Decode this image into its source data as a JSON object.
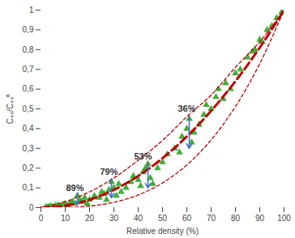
{
  "chart_data": {
    "type": "scatter",
    "x_label": "Relative density (%)",
    "y_label": "C₄₄/C₄₄⁰",
    "xlim": [
      0,
      100
    ],
    "xticks": [
      0,
      10,
      20,
      30,
      40,
      50,
      60,
      70,
      80,
      90,
      100
    ],
    "ylim": [
      0,
      1
    ],
    "yticks": [
      0,
      {
        "value": 0.1,
        "label": "0,1"
      },
      {
        "value": 0.2,
        "label": "0,2"
      },
      {
        "value": 0.3,
        "label": "0,3"
      },
      {
        "value": 0.4,
        "label": "0,4"
      },
      {
        "value": 0.5,
        "label": "0,5"
      },
      {
        "value": 0.6,
        "label": "0,6"
      },
      {
        "value": 0.7,
        "label": "0,7"
      },
      {
        "value": 0.8,
        "label": "0,8"
      },
      {
        "value": 0.9,
        "label": "0,9"
      },
      1
    ],
    "grid": false,
    "series": [
      {
        "type": "scatter",
        "marker": "triangle",
        "color": "#3fae3a",
        "x": [
          2,
          3,
          4,
          5,
          6,
          7,
          8,
          9,
          10,
          11,
          12,
          13,
          14,
          15,
          16,
          17,
          18,
          19,
          20,
          22,
          24,
          25,
          26,
          27,
          28,
          29,
          30,
          31,
          32,
          33,
          35,
          37,
          38,
          40,
          41,
          42,
          43,
          44,
          45,
          46,
          48,
          50,
          52,
          55,
          57,
          58,
          60,
          61,
          62,
          63,
          65,
          67,
          68,
          70,
          72,
          73,
          75,
          76,
          78,
          80,
          82,
          85,
          87,
          88,
          90,
          91,
          93,
          95,
          97,
          99
        ],
        "values": [
          0.003,
          0.005,
          0.008,
          0.005,
          0.01,
          0.012,
          0.006,
          0.015,
          0.02,
          0.01,
          0.025,
          0.03,
          0.02,
          0.06,
          0.04,
          0.03,
          0.05,
          0.02,
          0.04,
          0.06,
          0.05,
          0.08,
          0.07,
          0.04,
          0.09,
          0.13,
          0.1,
          0.06,
          0.12,
          0.08,
          0.1,
          0.13,
          0.16,
          0.14,
          0.11,
          0.18,
          0.2,
          0.22,
          0.15,
          0.12,
          0.2,
          0.23,
          0.27,
          0.3,
          0.28,
          0.36,
          0.4,
          0.45,
          0.33,
          0.38,
          0.42,
          0.47,
          0.52,
          0.5,
          0.56,
          0.6,
          0.55,
          0.63,
          0.6,
          0.68,
          0.7,
          0.76,
          0.79,
          0.8,
          0.85,
          0.84,
          0.9,
          0.92,
          0.96,
          0.99
        ]
      },
      {
        "type": "line",
        "line_style": "dashed",
        "color": "#c00000",
        "x": [
          0,
          10,
          20,
          30,
          40,
          50,
          60,
          70,
          80,
          90,
          100
        ],
        "values": [
          0,
          0.03,
          0.08,
          0.15,
          0.24,
          0.34,
          0.46,
          0.57,
          0.71,
          0.84,
          1
        ]
      },
      {
        "type": "line",
        "line_style": "bold-dashed",
        "color": "#c00000",
        "x": [
          0,
          10,
          20,
          30,
          40,
          50,
          60,
          70,
          80,
          90,
          100
        ],
        "values": [
          0,
          0.01,
          0.04,
          0.09,
          0.16,
          0.25,
          0.36,
          0.49,
          0.64,
          0.81,
          1
        ]
      },
      {
        "type": "line",
        "line_style": "dashed",
        "color": "#c00000",
        "x": [
          0,
          10,
          20,
          30,
          40,
          50,
          60,
          70,
          80,
          90,
          100
        ],
        "values": [
          0,
          0.001,
          0.008,
          0.027,
          0.064,
          0.125,
          0.216,
          0.343,
          0.512,
          0.729,
          1
        ]
      }
    ],
    "annotations": [
      {
        "text": "89%",
        "x": 14,
        "y": 0.1,
        "color": "#4472c4",
        "arrow": {
          "x1": 15,
          "y1": 0.075,
          "x2": 15,
          "y2": 0.015
        }
      },
      {
        "text": "79%",
        "x": 28,
        "y": 0.18,
        "color": "#4472c4",
        "arrow": {
          "x1": 29,
          "y1": 0.145,
          "x2": 29,
          "y2": 0.05
        }
      },
      {
        "text": "53%",
        "x": 42,
        "y": 0.26,
        "color": "#4472c4",
        "arrow": {
          "x1": 44,
          "y1": 0.225,
          "x2": 44,
          "y2": 0.1
        }
      },
      {
        "text": "36%",
        "x": 60,
        "y": 0.5,
        "color": "#4472c4",
        "arrow": {
          "x1": 61,
          "y1": 0.465,
          "x2": 61,
          "y2": 0.3
        }
      }
    ]
  }
}
